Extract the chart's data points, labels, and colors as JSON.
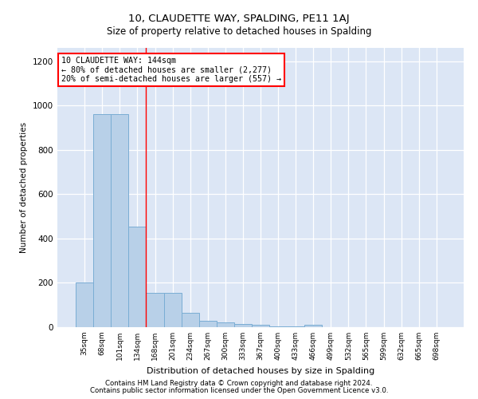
{
  "title1": "10, CLAUDETTE WAY, SPALDING, PE11 1AJ",
  "title2": "Size of property relative to detached houses in Spalding",
  "xlabel": "Distribution of detached houses by size in Spalding",
  "ylabel": "Number of detached properties",
  "categories": [
    "35sqm",
    "68sqm",
    "101sqm",
    "134sqm",
    "168sqm",
    "201sqm",
    "234sqm",
    "267sqm",
    "300sqm",
    "333sqm",
    "367sqm",
    "400sqm",
    "433sqm",
    "466sqm",
    "499sqm",
    "532sqm",
    "565sqm",
    "599sqm",
    "632sqm",
    "665sqm",
    "698sqm"
  ],
  "values": [
    200,
    960,
    960,
    455,
    155,
    155,
    65,
    30,
    22,
    15,
    10,
    5,
    2,
    10,
    0,
    0,
    0,
    0,
    0,
    0,
    0
  ],
  "bar_color": "#b8d0e8",
  "bar_edge_color": "#7aadd4",
  "annotation_line1": "10 CLAUDETTE WAY: 144sqm",
  "annotation_line2": "← 80% of detached houses are smaller (2,277)",
  "annotation_line3": "20% of semi-detached houses are larger (557) →",
  "red_line_x": 3.5,
  "box_color": "white",
  "box_edge_color": "red",
  "background_color": "#dce6f5",
  "footer1": "Contains HM Land Registry data © Crown copyright and database right 2024.",
  "footer2": "Contains public sector information licensed under the Open Government Licence v3.0.",
  "ylim": [
    0,
    1260
  ],
  "yticks": [
    0,
    200,
    400,
    600,
    800,
    1000,
    1200
  ]
}
